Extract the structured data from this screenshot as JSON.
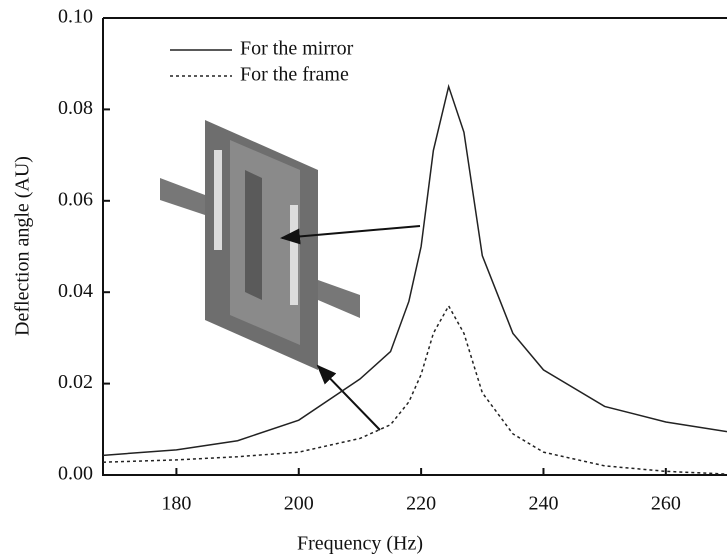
{
  "chart_data": {
    "type": "line",
    "x_label": "Frequency (Hz)",
    "y_label": "Deflection angle (AU)",
    "x": [
      168,
      180,
      190,
      200,
      210,
      215,
      218,
      220,
      222,
      224.5,
      227,
      230,
      235,
      240,
      250,
      260,
      270
    ],
    "series": [
      {
        "name": "For the mirror",
        "color": "#222222",
        "line_style": "solid",
        "values": [
          0.0043,
          0.0055,
          0.0075,
          0.012,
          0.021,
          0.027,
          0.038,
          0.05,
          0.071,
          0.085,
          0.075,
          0.048,
          0.031,
          0.023,
          0.015,
          0.0116,
          0.0095
        ]
      },
      {
        "name": "For the frame",
        "color": "#222222",
        "line_style": "dashed",
        "values": [
          0.0028,
          0.0033,
          0.004,
          0.005,
          0.008,
          0.011,
          0.016,
          0.022,
          0.031,
          0.037,
          0.031,
          0.018,
          0.009,
          0.005,
          0.002,
          0.0008,
          0.0002
        ]
      }
    ],
    "xlim": [
      168,
      270
    ],
    "ylim": [
      0,
      0.1
    ],
    "xticks": [
      180,
      200,
      220,
      240,
      260
    ],
    "yticks": [
      {
        "value": 0,
        "label": "0.00"
      },
      {
        "value": 0.02,
        "label": "0.02"
      },
      {
        "value": 0.04,
        "label": "0.04"
      },
      {
        "value": 0.06,
        "label": "0.06"
      },
      {
        "value": 0.08,
        "label": "0.08"
      },
      {
        "value": 0.1,
        "label": "0.10"
      }
    ],
    "legend": "upper-left",
    "grid": false
  }
}
